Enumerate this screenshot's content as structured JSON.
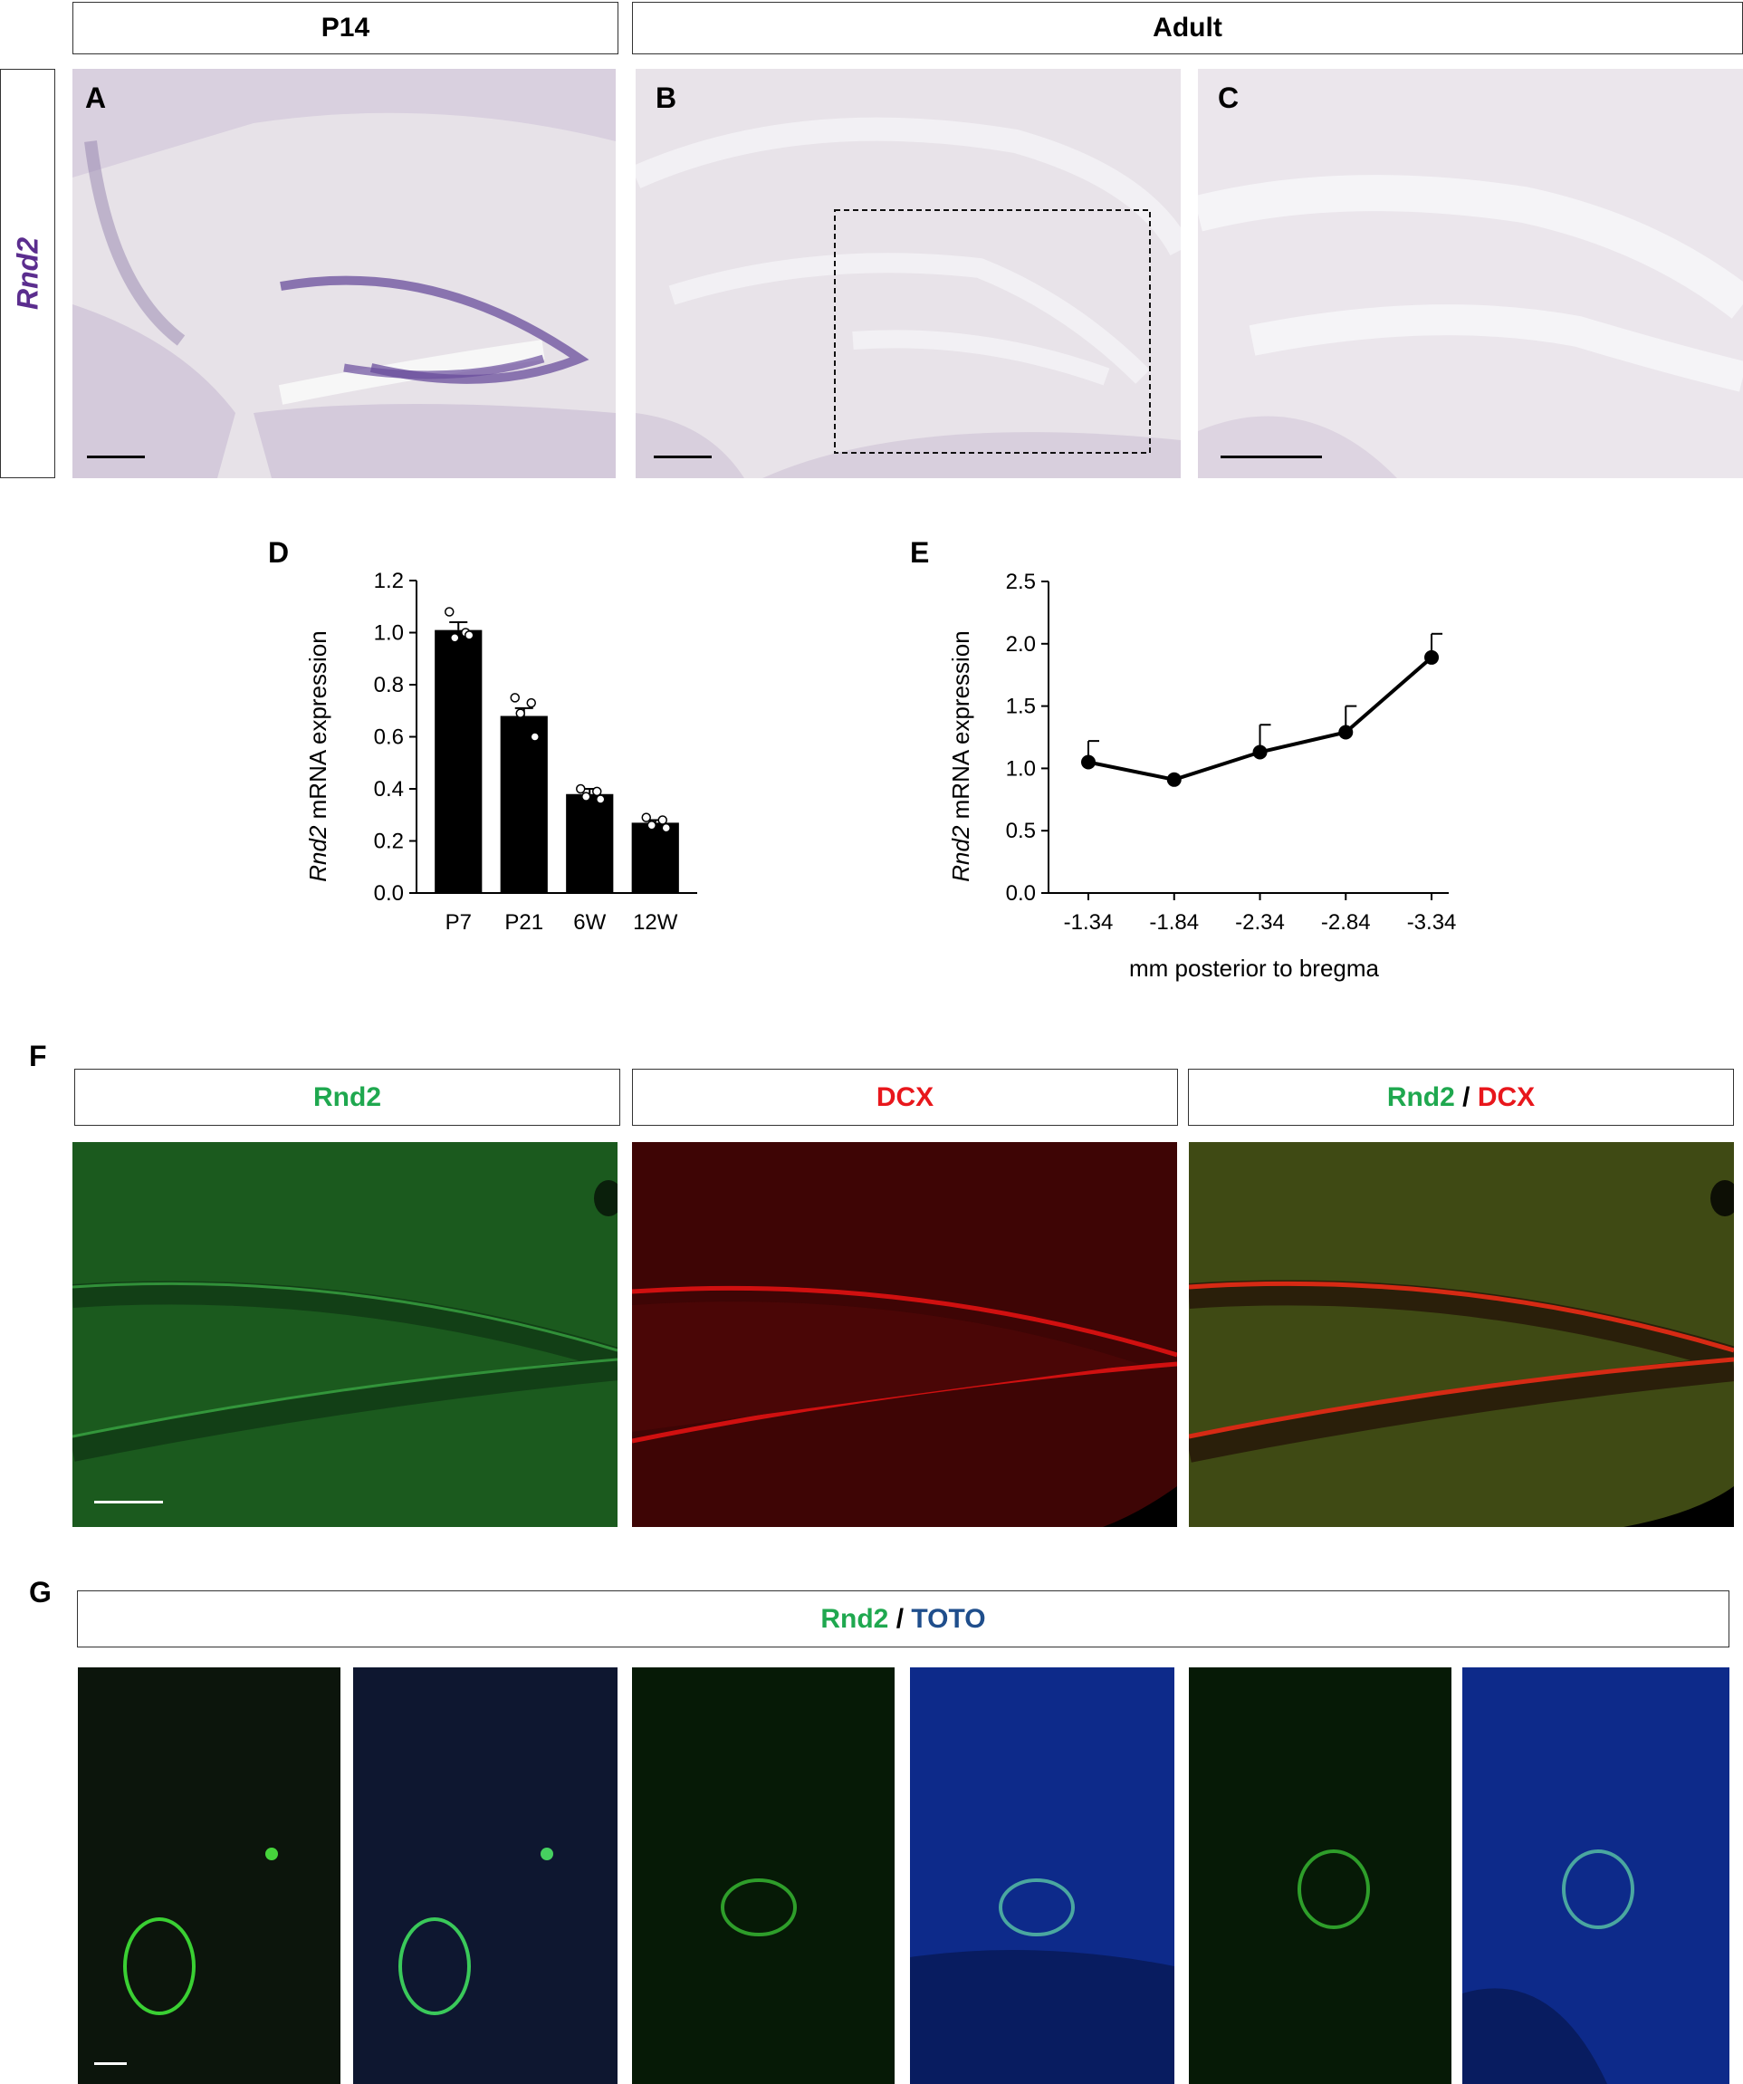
{
  "headers": {
    "p14": "P14",
    "adult": "Adult"
  },
  "side_label": "Rnd2",
  "panels": {
    "a": "A",
    "b": "B",
    "c": "C",
    "d": "D",
    "e": "E",
    "f": "F",
    "g": "G"
  },
  "fig_f": {
    "h1": "Rnd2",
    "h2": "DCX",
    "h3a": "Rnd2",
    "h3sep": " / ",
    "h3b": "DCX"
  },
  "fig_g": {
    "ha": "Rnd2",
    "hsep": " / ",
    "hb": "TOTO"
  },
  "chart_d": {
    "ylabel_italic": "Rnd2",
    "ylabel_rest": " mRNA expression"
  },
  "chart_e": {
    "ylabel_italic": "Rnd2",
    "ylabel_rest": " mRNA expression"
  },
  "chart_data": [
    {
      "type": "bar",
      "categories": [
        "P7",
        "P21",
        "6W",
        "12W"
      ],
      "values": [
        1.01,
        0.68,
        0.38,
        0.27
      ],
      "errors": [
        0.03,
        0.03,
        0.02,
        0.01
      ],
      "points": [
        [
          1.08,
          1.0,
          0.98,
          0.99
        ],
        [
          0.75,
          0.73,
          0.69,
          0.6
        ],
        [
          0.4,
          0.39,
          0.37,
          0.36
        ],
        [
          0.29,
          0.28,
          0.26,
          0.25
        ]
      ],
      "ylim": [
        0,
        1.2
      ],
      "yticks": [
        "0.0",
        "0.2",
        "0.4",
        "0.6",
        "0.8",
        "1.0",
        "1.2"
      ],
      "ylabel": "Rnd2 mRNA expression",
      "xlabel": ""
    },
    {
      "type": "line",
      "x": [
        "-1.34",
        "-1.84",
        "-2.34",
        "-2.84",
        "-3.34"
      ],
      "values": [
        1.05,
        0.91,
        1.13,
        1.29,
        1.89
      ],
      "errors": [
        0.17,
        0.0,
        0.22,
        0.21,
        0.19
      ],
      "ylim": [
        0,
        2.5
      ],
      "yticks": [
        "0.0",
        "0.5",
        "1.0",
        "1.5",
        "2.0",
        "2.5"
      ],
      "ylabel": "Rnd2 mRNA expression",
      "xlabel": "mm posterior to bregma"
    }
  ]
}
